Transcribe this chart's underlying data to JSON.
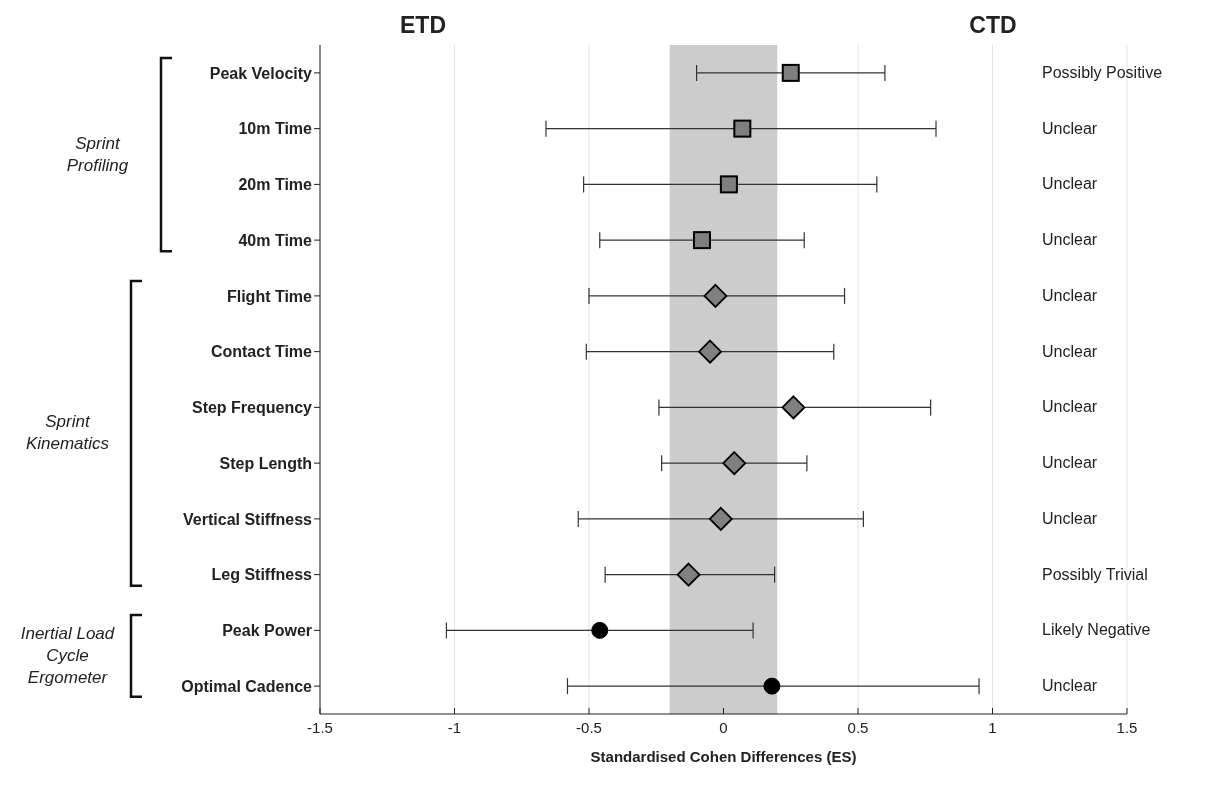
{
  "chart_data": {
    "type": "scatter",
    "orientation": "horizontal",
    "xlabel": "Standardised Cohen Differences (ES)",
    "categories": [
      "Peak Velocity",
      "10m Time",
      "20m Time",
      "40m Time",
      "Flight Time",
      "Contact Time",
      "Step Frequency",
      "Step Length",
      "Vertical Stiffness",
      "Leg Stiffness",
      "Peak Power",
      "Optimal Cadence"
    ],
    "series": [
      {
        "color": "#7f7f7f",
        "marker": "square",
        "values": [
          0.25,
          0.07,
          0.02,
          -0.08,
          null,
          null,
          null,
          null,
          null,
          null,
          null,
          null
        ],
        "errors": [
          [
            -0.1,
            0.6
          ],
          [
            -0.66,
            0.79
          ],
          [
            -0.52,
            0.57
          ],
          [
            -0.46,
            0.3
          ],
          null,
          null,
          null,
          null,
          null,
          null,
          null,
          null
        ]
      },
      {
        "color": "#808080",
        "marker": "diamond",
        "values": [
          null,
          null,
          null,
          null,
          -0.03,
          -0.05,
          0.26,
          0.04,
          -0.01,
          -0.13,
          null,
          null
        ],
        "errors": [
          null,
          null,
          null,
          null,
          [
            -0.5,
            0.45
          ],
          [
            -0.51,
            0.41
          ],
          [
            -0.24,
            0.77
          ],
          [
            -0.23,
            0.31
          ],
          [
            -0.54,
            0.52
          ],
          [
            -0.44,
            0.19
          ],
          null,
          null
        ]
      },
      {
        "color": "#000000",
        "marker": "circle",
        "values": [
          null,
          null,
          null,
          null,
          null,
          null,
          null,
          null,
          null,
          null,
          -0.46,
          0.18
        ],
        "errors": [
          null,
          null,
          null,
          null,
          null,
          null,
          null,
          null,
          null,
          null,
          [
            -1.03,
            0.11
          ],
          [
            -0.58,
            0.95
          ]
        ]
      }
    ],
    "xlim": [
      -1.5,
      1.5
    ],
    "xticks": [
      -1.5,
      -1,
      -0.5,
      0,
      0.5,
      1,
      1.5
    ],
    "grid": "x",
    "bands": [
      {
        "axis": "x",
        "from": -0.2,
        "to": 0.2,
        "color": "#cccccc"
      }
    ],
    "annotations": [
      "ETD",
      "CTD",
      "Sprint Profiling",
      "Sprint Kinematics",
      "Inertial Load Cycle Ergometer",
      "Possibly Positive",
      "Unclear",
      "Unclear",
      "Unclear",
      "Unclear",
      "Unclear",
      "Unclear",
      "Unclear",
      "Unclear",
      "Possibly Trivial",
      "Likely Negative",
      "Unclear"
    ]
  }
}
